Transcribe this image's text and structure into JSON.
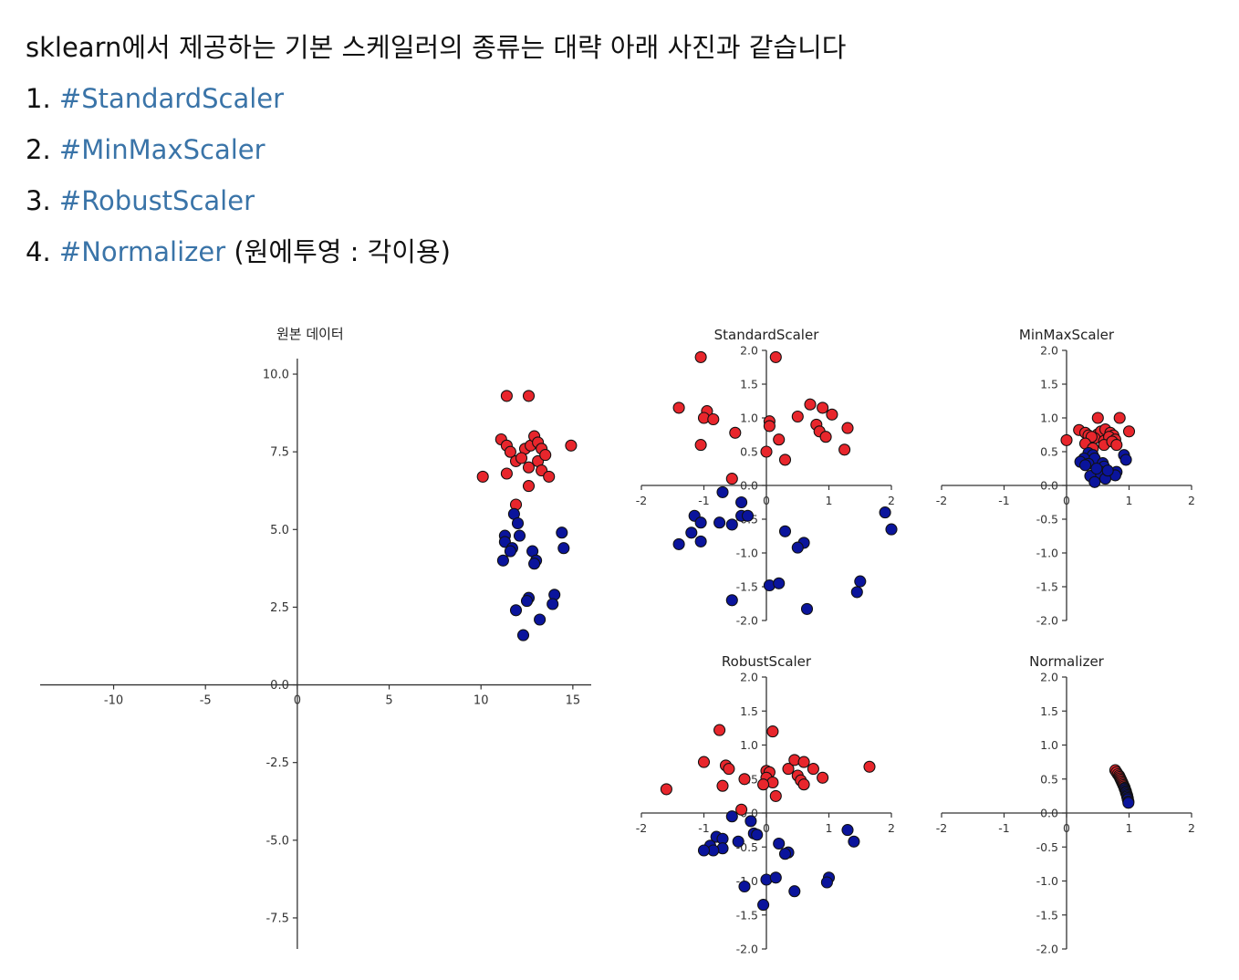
{
  "intro": {
    "line": "sklearn에서 제공하는 기본 스케일러의 종류는 대략 아래 사진과 같습니다",
    "items": [
      {
        "num": "1. ",
        "tag": "#StandardScaler",
        "note": ""
      },
      {
        "num": "2. ",
        "tag": "#MinMaxScaler",
        "note": ""
      },
      {
        "num": "3. ",
        "tag": "#RobustScaler",
        "note": ""
      },
      {
        "num": "4. ",
        "tag": "#Normalizer",
        "note": " (원에투영 : 각이용)"
      }
    ]
  },
  "colors": {
    "tag": "#3a74a8",
    "class_a": "#e8262c",
    "class_b": "#0a149c",
    "edge": "#111111"
  },
  "chart_data": [
    {
      "type": "scatter",
      "title": "원본 데이터",
      "xlim": [
        -14,
        16
      ],
      "ylim": [
        -8.5,
        10.5
      ],
      "xticks": [
        -10,
        -5,
        0,
        5,
        10,
        15
      ],
      "xtick_labels": [
        "-10",
        "-5",
        "0",
        "5",
        "10",
        "15"
      ],
      "yticks": [
        10,
        7.5,
        5,
        2.5,
        0,
        -2.5,
        -5,
        -7.5
      ],
      "ytick_labels": [
        "10.0",
        "7.5",
        "5.0",
        "2.5",
        "0.0",
        "-2.5",
        "-5.0",
        "-7.5"
      ],
      "grid": false,
      "series": [
        {
          "class": "a",
          "points": [
            [
              11.4,
              9.3
            ],
            [
              12.6,
              9.3
            ],
            [
              11.1,
              7.9
            ],
            [
              11.4,
              7.7
            ],
            [
              11.6,
              7.5
            ],
            [
              12.4,
              7.6
            ],
            [
              12.7,
              7.7
            ],
            [
              12.9,
              8.0
            ],
            [
              13.1,
              7.8
            ],
            [
              13.3,
              7.6
            ],
            [
              14.9,
              7.7
            ],
            [
              11.9,
              7.2
            ],
            [
              12.6,
              7.0
            ],
            [
              13.1,
              7.2
            ],
            [
              13.5,
              7.4
            ],
            [
              12.2,
              7.3
            ],
            [
              10.1,
              6.7
            ],
            [
              11.4,
              6.8
            ],
            [
              12.6,
              6.4
            ],
            [
              13.3,
              6.9
            ],
            [
              13.7,
              6.7
            ],
            [
              11.9,
              5.8
            ]
          ]
        },
        {
          "class": "b",
          "points": [
            [
              11.8,
              5.5
            ],
            [
              12.0,
              5.2
            ],
            [
              11.3,
              4.8
            ],
            [
              12.1,
              4.8
            ],
            [
              11.3,
              4.6
            ],
            [
              11.7,
              4.4
            ],
            [
              11.6,
              4.3
            ],
            [
              11.2,
              4.0
            ],
            [
              12.8,
              4.3
            ],
            [
              13.0,
              4.0
            ],
            [
              12.9,
              3.9
            ],
            [
              14.4,
              4.9
            ],
            [
              14.5,
              4.4
            ],
            [
              12.6,
              2.8
            ],
            [
              12.5,
              2.7
            ],
            [
              14.0,
              2.9
            ],
            [
              13.9,
              2.6
            ],
            [
              11.9,
              2.4
            ],
            [
              13.2,
              2.1
            ],
            [
              12.3,
              1.6
            ]
          ]
        }
      ]
    },
    {
      "type": "scatter",
      "title": "StandardScaler",
      "xlim": [
        -2,
        2
      ],
      "ylim": [
        -2,
        2
      ],
      "xticks": [
        -2,
        -1,
        0,
        1,
        2
      ],
      "xtick_labels": [
        "-2",
        "-1",
        "0",
        "1",
        "2"
      ],
      "yticks": [
        2,
        1.5,
        1,
        0.5,
        0,
        -0.5,
        -1,
        -1.5,
        -2
      ],
      "ytick_labels": [
        "2.0",
        "1.5",
        "1.0",
        "0.5",
        "0.0",
        "-0.5",
        "-1.0",
        "-1.5",
        "-2.0"
      ],
      "grid": false,
      "series": [
        {
          "class": "a",
          "points": [
            [
              -1.05,
              1.9
            ],
            [
              0.15,
              1.9
            ],
            [
              -1.4,
              1.15
            ],
            [
              -0.95,
              1.1
            ],
            [
              -1.0,
              1.0
            ],
            [
              -0.85,
              0.98
            ],
            [
              -0.5,
              0.78
            ],
            [
              0.05,
              0.95
            ],
            [
              0.05,
              0.88
            ],
            [
              0.5,
              1.02
            ],
            [
              0.7,
              1.2
            ],
            [
              0.9,
              1.15
            ],
            [
              1.05,
              1.05
            ],
            [
              0.8,
              0.9
            ],
            [
              0.85,
              0.8
            ],
            [
              0.95,
              0.72
            ],
            [
              1.3,
              0.85
            ],
            [
              0.2,
              0.68
            ],
            [
              -1.05,
              0.6
            ],
            [
              0.0,
              0.5
            ],
            [
              0.3,
              0.38
            ],
            [
              1.25,
              0.53
            ],
            [
              -0.55,
              0.1
            ]
          ]
        },
        {
          "class": "b",
          "points": [
            [
              -0.7,
              -0.1
            ],
            [
              -0.4,
              -0.25
            ],
            [
              -1.15,
              -0.45
            ],
            [
              -1.05,
              -0.55
            ],
            [
              -0.75,
              -0.55
            ],
            [
              -0.4,
              -0.45
            ],
            [
              -0.3,
              -0.45
            ],
            [
              -1.2,
              -0.7
            ],
            [
              -1.4,
              -0.87
            ],
            [
              -1.05,
              -0.83
            ],
            [
              -0.55,
              -0.58
            ],
            [
              0.3,
              -0.68
            ],
            [
              0.6,
              -0.85
            ],
            [
              0.5,
              -0.92
            ],
            [
              1.9,
              -0.4
            ],
            [
              2.0,
              -0.65
            ],
            [
              0.05,
              -1.48
            ],
            [
              0.2,
              -1.45
            ],
            [
              1.5,
              -1.42
            ],
            [
              1.45,
              -1.58
            ],
            [
              -0.55,
              -1.7
            ],
            [
              0.65,
              -1.83
            ]
          ]
        }
      ]
    },
    {
      "type": "scatter",
      "title": "MinMaxScaler",
      "xlim": [
        -2,
        2
      ],
      "ylim": [
        -2,
        2
      ],
      "xticks": [
        -2,
        -1,
        0,
        1,
        2
      ],
      "xtick_labels": [
        "-2",
        "-1",
        "0",
        "1",
        "2"
      ],
      "yticks": [
        2,
        1.5,
        1,
        0.5,
        0,
        -0.5,
        -1,
        -1.5,
        -2
      ],
      "ytick_labels": [
        "2.0",
        "1.5",
        "1.0",
        "0.5",
        "0.0",
        "-0.5",
        "-1.0",
        "-1.5",
        "-2.0"
      ],
      "grid": false,
      "series": [
        {
          "class": "a",
          "points": [
            [
              0.5,
              1.0
            ],
            [
              0.85,
              1.0
            ],
            [
              0.2,
              0.82
            ],
            [
              0.3,
              0.78
            ],
            [
              0.35,
              0.74
            ],
            [
              0.5,
              0.76
            ],
            [
              0.55,
              0.8
            ],
            [
              0.62,
              0.83
            ],
            [
              0.7,
              0.78
            ],
            [
              0.75,
              0.74
            ],
            [
              1.0,
              0.8
            ],
            [
              0.45,
              0.7
            ],
            [
              0.6,
              0.66
            ],
            [
              0.68,
              0.72
            ],
            [
              0.78,
              0.68
            ],
            [
              0.4,
              0.72
            ],
            [
              0.0,
              0.67
            ],
            [
              0.3,
              0.62
            ],
            [
              0.6,
              0.6
            ],
            [
              0.73,
              0.65
            ],
            [
              0.8,
              0.6
            ],
            [
              0.42,
              0.55
            ]
          ]
        },
        {
          "class": "b",
          "points": [
            [
              0.35,
              0.48
            ],
            [
              0.42,
              0.45
            ],
            [
              0.28,
              0.4
            ],
            [
              0.45,
              0.4
            ],
            [
              0.22,
              0.35
            ],
            [
              0.35,
              0.32
            ],
            [
              0.3,
              0.3
            ],
            [
              0.58,
              0.33
            ],
            [
              0.6,
              0.28
            ],
            [
              0.92,
              0.45
            ],
            [
              0.95,
              0.38
            ],
            [
              0.55,
              0.2
            ],
            [
              0.52,
              0.17
            ],
            [
              0.8,
              0.2
            ],
            [
              0.78,
              0.15
            ],
            [
              0.38,
              0.14
            ],
            [
              0.62,
              0.1
            ],
            [
              0.45,
              0.05
            ],
            [
              0.66,
              0.22
            ],
            [
              0.48,
              0.25
            ]
          ]
        }
      ]
    },
    {
      "type": "scatter",
      "title": "RobustScaler",
      "xlim": [
        -2,
        2
      ],
      "ylim": [
        -2,
        2
      ],
      "xticks": [
        -2,
        -1,
        0,
        1,
        2
      ],
      "xtick_labels": [
        "-2",
        "-1",
        "0",
        "1",
        "2"
      ],
      "yticks": [
        2,
        1.5,
        1,
        0.5,
        0,
        -0.5,
        -1,
        -1.5,
        -2
      ],
      "ytick_labels": [
        "2.0",
        "1.5",
        "1.0",
        "0.5",
        "0.0",
        "-0.5",
        "-1.0",
        "-1.5",
        "-2.0"
      ],
      "grid": false,
      "series": [
        {
          "class": "a",
          "points": [
            [
              -0.75,
              1.22
            ],
            [
              0.1,
              1.2
            ],
            [
              -1.0,
              0.75
            ],
            [
              -0.65,
              0.7
            ],
            [
              -0.6,
              0.65
            ],
            [
              0.0,
              0.62
            ],
            [
              0.05,
              0.6
            ],
            [
              0.35,
              0.65
            ],
            [
              0.45,
              0.78
            ],
            [
              0.6,
              0.75
            ],
            [
              0.75,
              0.65
            ],
            [
              0.5,
              0.55
            ],
            [
              0.55,
              0.48
            ],
            [
              0.6,
              0.42
            ],
            [
              0.9,
              0.52
            ],
            [
              1.65,
              0.68
            ],
            [
              0.0,
              0.52
            ],
            [
              0.1,
              0.45
            ],
            [
              -0.35,
              0.5
            ],
            [
              -0.05,
              0.42
            ],
            [
              -0.7,
              0.4
            ],
            [
              -1.6,
              0.35
            ],
            [
              0.15,
              0.25
            ],
            [
              -0.4,
              0.05
            ]
          ]
        },
        {
          "class": "b",
          "points": [
            [
              -0.55,
              -0.05
            ],
            [
              -0.25,
              -0.12
            ],
            [
              -0.8,
              -0.35
            ],
            [
              -0.7,
              -0.38
            ],
            [
              -0.2,
              -0.3
            ],
            [
              -0.15,
              -0.32
            ],
            [
              -0.9,
              -0.48
            ],
            [
              -0.7,
              -0.52
            ],
            [
              -0.85,
              -0.55
            ],
            [
              -1.0,
              -0.55
            ],
            [
              -0.45,
              -0.42
            ],
            [
              0.2,
              -0.45
            ],
            [
              0.35,
              -0.58
            ],
            [
              0.3,
              -0.6
            ],
            [
              1.3,
              -0.25
            ],
            [
              1.4,
              -0.42
            ],
            [
              0.0,
              -0.98
            ],
            [
              0.15,
              -0.95
            ],
            [
              1.0,
              -0.95
            ],
            [
              0.97,
              -1.02
            ],
            [
              -0.35,
              -1.08
            ],
            [
              0.45,
              -1.15
            ],
            [
              -0.05,
              -1.35
            ]
          ]
        }
      ]
    },
    {
      "type": "scatter",
      "title": "Normalizer",
      "xlim": [
        -2,
        2
      ],
      "ylim": [
        -2,
        2
      ],
      "xticks": [
        -2,
        -1,
        0,
        1,
        2
      ],
      "xtick_labels": [
        "-2",
        "-1",
        "0",
        "1",
        "2"
      ],
      "yticks": [
        2,
        1.5,
        1,
        0.5,
        0,
        -0.5,
        -1,
        -1.5,
        -2
      ],
      "ytick_labels": [
        "2.0",
        "1.5",
        "1.0",
        "0.5",
        "0.0",
        "-0.5",
        "-1.0",
        "-1.5",
        "-2.0"
      ],
      "grid": false,
      "series": [
        {
          "class": "a",
          "points": [
            [
              0.78,
              0.63
            ],
            [
              0.8,
              0.6
            ],
            [
              0.82,
              0.57
            ],
            [
              0.84,
              0.55
            ],
            [
              0.85,
              0.53
            ],
            [
              0.86,
              0.51
            ],
            [
              0.87,
              0.49
            ],
            [
              0.88,
              0.47
            ],
            [
              0.89,
              0.45
            ],
            [
              0.9,
              0.43
            ],
            [
              0.91,
              0.41
            ],
            [
              0.92,
              0.39
            ],
            [
              0.93,
              0.37
            ]
          ]
        },
        {
          "class": "b",
          "points": [
            [
              0.93,
              0.36
            ],
            [
              0.94,
              0.34
            ],
            [
              0.95,
              0.32
            ],
            [
              0.95,
              0.3
            ],
            [
              0.96,
              0.28
            ],
            [
              0.97,
              0.26
            ],
            [
              0.97,
              0.24
            ],
            [
              0.98,
              0.22
            ],
            [
              0.98,
              0.2
            ],
            [
              0.99,
              0.17
            ],
            [
              0.99,
              0.15
            ]
          ]
        }
      ]
    }
  ]
}
